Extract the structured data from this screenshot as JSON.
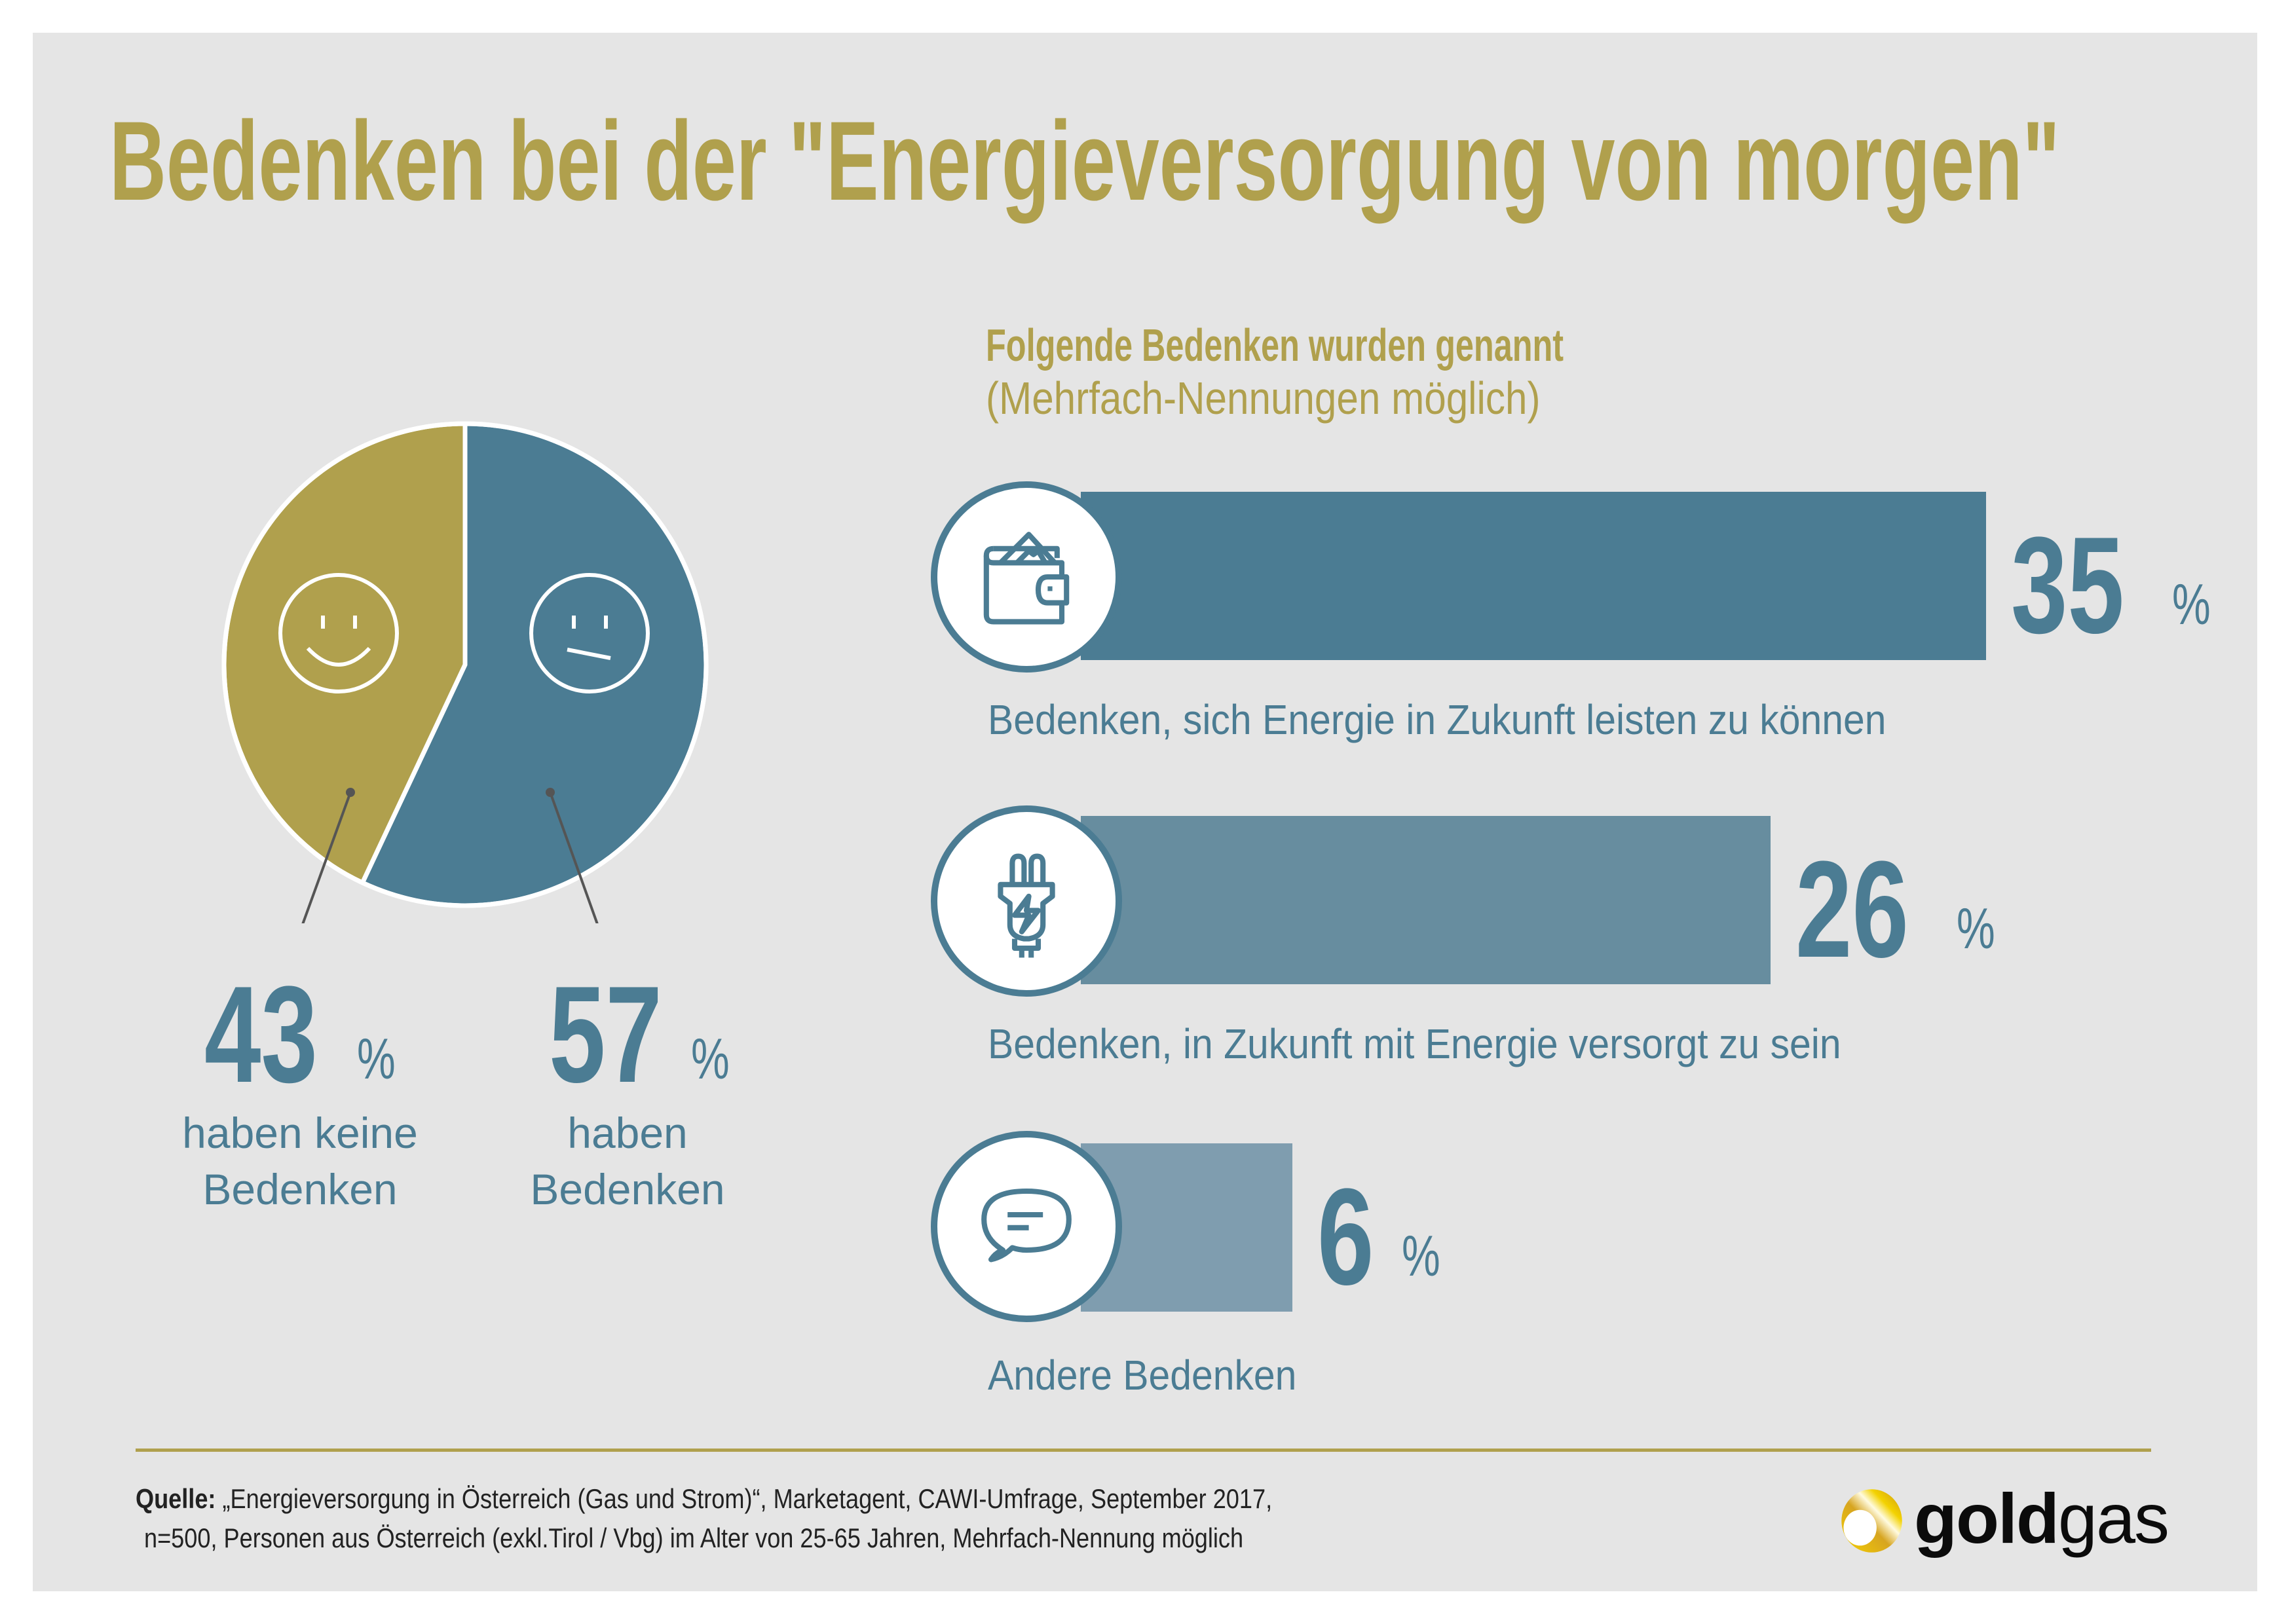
{
  "title": "Bedenken bei der \"Energieversorgung von morgen\"",
  "colors": {
    "gold": "#b0a04d",
    "blue": "#4b7c93",
    "bar_mid": "#678d9f",
    "bar_light": "#7f9daf",
    "background": "#e5e5e5"
  },
  "pie": {
    "slices": [
      {
        "name": "keine Bedenken",
        "value": 43,
        "value_text": "43",
        "unit": "%",
        "label_line1": "haben keine",
        "label_line2": "Bedenken",
        "color": "#b0a04d",
        "icon": "smiley-happy-icon"
      },
      {
        "name": "Bedenken",
        "value": 57,
        "value_text": "57",
        "unit": "%",
        "label_line1": "haben",
        "label_line2": "Bedenken",
        "color": "#4b7c93",
        "icon": "smiley-neutral-icon"
      }
    ]
  },
  "right": {
    "heading": "Folgende Bedenken wurden genannt",
    "note": "(Mehrfach-Nennungen möglich)"
  },
  "chart_data": [
    {
      "type": "pie",
      "title": "Bedenken bei der \"Energieversorgung von morgen\"",
      "categories": [
        "haben keine Bedenken",
        "haben Bedenken"
      ],
      "values": [
        43,
        57
      ],
      "unit": "%"
    },
    {
      "type": "bar",
      "orientation": "horizontal",
      "title": "Folgende Bedenken wurden genannt (Mehrfach-Nennungen möglich)",
      "categories": [
        "Bedenken, sich Energie in Zukunft leisten zu können",
        "Bedenken, in Zukunft mit Energie versorgt zu sein",
        "Andere Bedenken"
      ],
      "values": [
        35,
        26,
        6
      ],
      "unit": "%",
      "xlabel": "",
      "ylabel": "",
      "grid": false
    }
  ],
  "bars": [
    {
      "label": "Bedenken, sich Energie in Zukunft leisten zu können",
      "value": 35,
      "value_text": "35",
      "unit": "%",
      "icon": "wallet-icon",
      "color": "#4b7c93"
    },
    {
      "label": "Bedenken, in Zukunft mit Energie versorgt zu sein",
      "value": 26,
      "value_text": "26",
      "unit": "%",
      "icon": "plug-icon",
      "color": "#678d9f"
    },
    {
      "label": "Andere Bedenken",
      "value": 6,
      "value_text": "6",
      "unit": "%",
      "icon": "speech-bubble-icon",
      "color": "#7f9daf"
    }
  ],
  "footer": {
    "source_label": "Quelle:",
    "source_line1": " „Energieversorgung in Österreich (Gas und Strom)“, Marketagent, CAWI-Umfrage, September 2017,",
    "source_line2": "n=500, Personen aus Österreich (exkl.Tirol / Vbg) im Alter von 25-65 Jahren, Mehrfach-Nennung möglich"
  },
  "logo": {
    "bold": "gold",
    "regular": "gas"
  }
}
